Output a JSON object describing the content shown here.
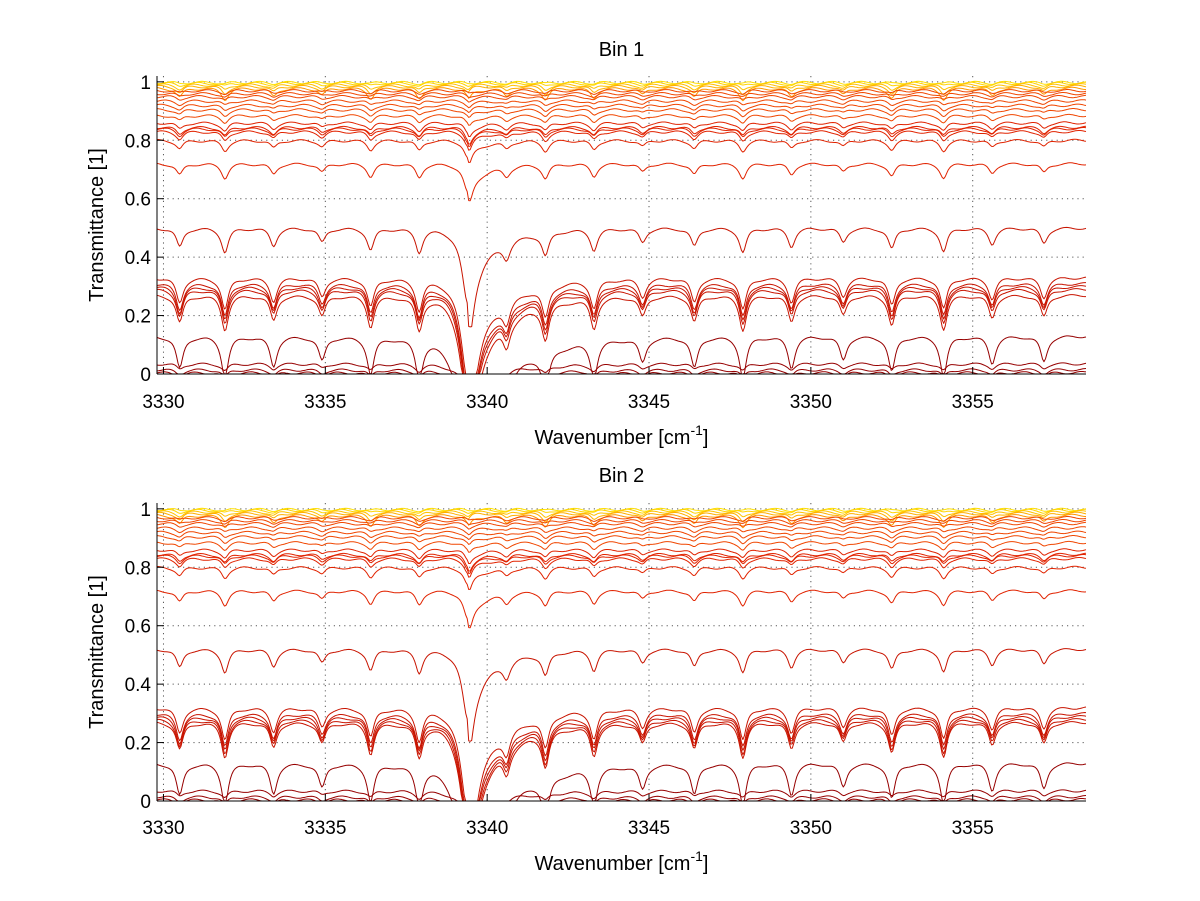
{
  "chart_data": [
    {
      "type": "line",
      "title": "Bin 1",
      "xlabel": "Wavenumber [cm",
      "xlabel_sup": "-1",
      "xlabel_end": "]",
      "ylabel": "Transmittance [1]",
      "xlim": [
        3329.8,
        3358.5
      ],
      "ylim": [
        0,
        1.02
      ],
      "xticks": [
        3330,
        3335,
        3340,
        3345,
        3350,
        3355
      ],
      "yticks": [
        0,
        0.2,
        0.4,
        0.6,
        0.8,
        1
      ],
      "xtick_labels": [
        "3330",
        "3335",
        "3340",
        "3345",
        "3350",
        "3355"
      ],
      "ytick_labels": [
        "0",
        "0.2",
        "0.4",
        "0.6",
        "0.8",
        "1"
      ],
      "grid": true,
      "line_centers": [
        3330.5,
        3331.9,
        3333.4,
        3334.9,
        3336.4,
        3337.9,
        3339.4,
        3340.6,
        3341.8,
        3343.3,
        3344.8,
        3346.4,
        3347.9,
        3349.4,
        3351.0,
        3352.5,
        3354.1,
        3355.6,
        3357.2
      ],
      "series_baselines": [
        0.998,
        0.995,
        0.99,
        0.985,
        0.978,
        0.97,
        0.96,
        0.95,
        0.935,
        0.92,
        0.905,
        0.885,
        0.86,
        0.845,
        0.84,
        0.83,
        0.8,
        0.72,
        0.5,
        0.33,
        0.31,
        0.3,
        0.29,
        0.27,
        0.13,
        0.035,
        0.015,
        0.005
      ]
    },
    {
      "type": "line",
      "title": "Bin 2",
      "xlabel": "Wavenumber [cm",
      "xlabel_sup": "-1",
      "xlabel_end": "]",
      "ylabel": "Transmittance [1]",
      "xlim": [
        3329.8,
        3358.5
      ],
      "ylim": [
        0,
        1.02
      ],
      "xticks": [
        3330,
        3335,
        3340,
        3345,
        3350,
        3355
      ],
      "yticks": [
        0,
        0.2,
        0.4,
        0.6,
        0.8,
        1
      ],
      "xtick_labels": [
        "3330",
        "3335",
        "3340",
        "3345",
        "3350",
        "3355"
      ],
      "ytick_labels": [
        "0",
        "0.2",
        "0.4",
        "0.6",
        "0.8",
        "1"
      ],
      "grid": true,
      "line_centers": [
        3330.5,
        3331.9,
        3333.4,
        3334.9,
        3336.4,
        3337.9,
        3339.4,
        3340.6,
        3341.8,
        3343.3,
        3344.8,
        3346.4,
        3347.9,
        3349.4,
        3351.0,
        3352.5,
        3354.1,
        3355.6,
        3357.2
      ],
      "series_baselines": [
        0.998,
        0.995,
        0.99,
        0.985,
        0.978,
        0.97,
        0.96,
        0.95,
        0.935,
        0.92,
        0.905,
        0.885,
        0.86,
        0.845,
        0.84,
        0.83,
        0.8,
        0.72,
        0.52,
        0.32,
        0.3,
        0.29,
        0.28,
        0.27,
        0.13,
        0.035,
        0.015,
        0.005
      ]
    }
  ]
}
